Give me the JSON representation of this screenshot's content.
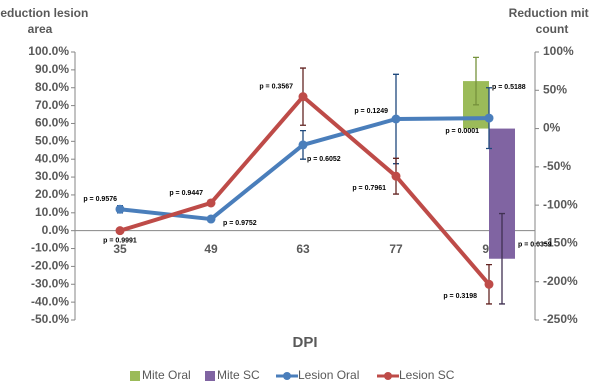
{
  "chart_data": {
    "type": "combo",
    "y_title": "Reduction lesion area",
    "y2_title": "Reduction mite count",
    "x_title": "DPI",
    "categories": [
      "35",
      "49",
      "63",
      "77",
      "92"
    ],
    "ylim": [
      -50,
      100
    ],
    "yticks": [
      {
        "value": 100,
        "label": "100.0%"
      },
      {
        "value": 90,
        "label": "90.0%"
      },
      {
        "value": 80,
        "label": "80.0%"
      },
      {
        "value": 70,
        "label": "70.0%"
      },
      {
        "value": 60,
        "label": "60.0%"
      },
      {
        "value": 50,
        "label": "50.0%"
      },
      {
        "value": 40,
        "label": "40.0%"
      },
      {
        "value": 30,
        "label": "30.0%"
      },
      {
        "value": 20,
        "label": "20.0%"
      },
      {
        "value": 10,
        "label": "10.0%"
      },
      {
        "value": 0,
        "label": "0.0%"
      },
      {
        "value": -10,
        "label": "-10.0%"
      },
      {
        "value": -20,
        "label": "-20.0%"
      },
      {
        "value": -30,
        "label": "-30.0%"
      },
      {
        "value": -40,
        "label": "-40.0%"
      },
      {
        "value": -50,
        "label": "-50.0%"
      }
    ],
    "y2lim": [
      -250,
      100
    ],
    "y2ticks": [
      {
        "value": 100,
        "label": "100%"
      },
      {
        "value": 50,
        "label": "50%"
      },
      {
        "value": 0,
        "label": "0%"
      },
      {
        "value": -50,
        "label": "-50%"
      },
      {
        "value": -100,
        "label": "-100%"
      },
      {
        "value": -150,
        "label": "-150%"
      },
      {
        "value": -200,
        "label": "-200%"
      },
      {
        "value": -250,
        "label": "-250%"
      }
    ],
    "series": [
      {
        "name": "Mite Oral",
        "type": "bar",
        "axis": "y2",
        "color": "#9bbb59",
        "error_color": "#77933c",
        "values": [
          null,
          null,
          null,
          null,
          62
        ],
        "errors": [
          null,
          null,
          null,
          null,
          31
        ],
        "p_values": [
          null,
          null,
          null,
          null,
          "p = 0.5188"
        ]
      },
      {
        "name": "Mite SC",
        "type": "bar",
        "axis": "y2",
        "color": "#8064a2",
        "error_color": "#403152",
        "values": [
          null,
          null,
          null,
          null,
          -170
        ],
        "errors": [
          null,
          null,
          null,
          null,
          59
        ],
        "p_values": [
          null,
          null,
          null,
          null,
          "p = 0.0359"
        ]
      },
      {
        "name": "Lesion Oral",
        "type": "line",
        "color": "#4a7ebb",
        "error_color": "#1f497d",
        "values": [
          12,
          6.5,
          48,
          62.5,
          63
        ],
        "errors": [
          2,
          1,
          8,
          25,
          17
        ],
        "p_values": [
          "p = 0.9576",
          "p = 0.9752",
          "p = 0.6052",
          "p = 0.1249",
          "p = 0.0001"
        ]
      },
      {
        "name": "Lesion SC",
        "type": "line",
        "color": "#be4b48",
        "error_color": "#632523",
        "values": [
          0,
          15.5,
          75,
          30.5,
          -30
        ],
        "errors": [
          0.5,
          1,
          16,
          10,
          11
        ],
        "p_values": [
          "p = 0.9991",
          "p = 0.9447",
          "p = 0.3567",
          "p = 0.7961",
          "p = 0.3198"
        ]
      }
    ]
  }
}
